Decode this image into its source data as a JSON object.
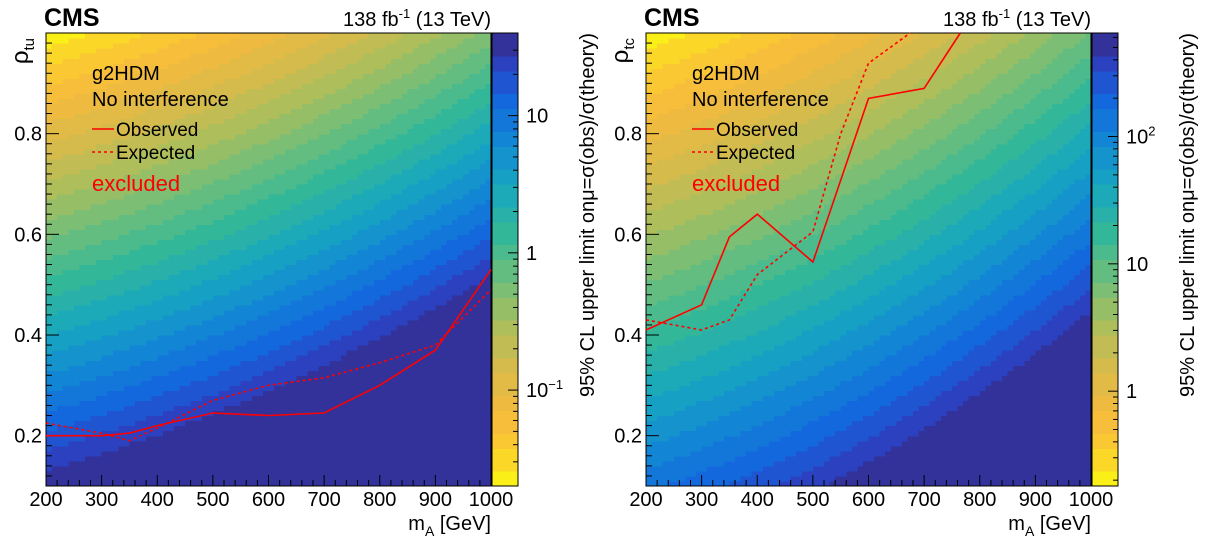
{
  "chart_data": [
    {
      "type": "heatmap",
      "experiment_label": "CMS",
      "lumi_label": "138 fb",
      "lumi_exp": "-1",
      "energy_label": " (13 TeV)",
      "xlabel_main": "m",
      "xlabel_sub": "A",
      "xlabel_unit": " [GeV]",
      "ylabel_main": "ρ",
      "ylabel_sub": "tu",
      "zlabel": "95% CL upper limit onμ=σ(obs)/σ(theory)",
      "xlim": [
        200,
        1000
      ],
      "ylim": [
        0.1,
        1.0
      ],
      "x_ticks": [
        "200",
        "300",
        "400",
        "500",
        "600",
        "700",
        "800",
        "900",
        "1000"
      ],
      "y_ticks": [
        "0.2",
        "0.4",
        "0.6",
        "0.8"
      ],
      "z_scale": "log",
      "zlim": [
        0.02,
        40
      ],
      "z_ticks": [
        {
          "value": 0.1,
          "base": "10",
          "exp": "−1"
        },
        {
          "value": 1,
          "base": "1",
          "exp": ""
        },
        {
          "value": 10,
          "base": "10",
          "exp": ""
        }
      ],
      "legend": {
        "model": "g2HDM",
        "scenario": "No interference",
        "observed": "Observed",
        "expected": "Expected",
        "excluded": "excluded"
      },
      "z_model": {
        "x_ref": 200,
        "y_ref": 1.0,
        "z_ref": 0.022,
        "decades_per_100GeV": 0.11,
        "decades_per_unit_rho": 3.6,
        "decades_per_100GeV_sq": 0.008
      },
      "observed": [
        {
          "x": 200,
          "y": 0.2
        },
        {
          "x": 300,
          "y": 0.2
        },
        {
          "x": 350,
          "y": 0.205
        },
        {
          "x": 400,
          "y": 0.22
        },
        {
          "x": 500,
          "y": 0.245
        },
        {
          "x": 600,
          "y": 0.24
        },
        {
          "x": 700,
          "y": 0.245
        },
        {
          "x": 800,
          "y": 0.3
        },
        {
          "x": 900,
          "y": 0.37
        },
        {
          "x": 1000,
          "y": 0.53
        }
      ],
      "expected": [
        {
          "x": 200,
          "y": 0.225
        },
        {
          "x": 300,
          "y": 0.205
        },
        {
          "x": 350,
          "y": 0.19
        },
        {
          "x": 400,
          "y": 0.215
        },
        {
          "x": 500,
          "y": 0.27
        },
        {
          "x": 600,
          "y": 0.3
        },
        {
          "x": 700,
          "y": 0.315
        },
        {
          "x": 800,
          "y": 0.345
        },
        {
          "x": 900,
          "y": 0.38
        },
        {
          "x": 1000,
          "y": 0.49
        }
      ]
    },
    {
      "type": "heatmap",
      "experiment_label": "CMS",
      "lumi_label": "138 fb",
      "lumi_exp": "-1",
      "energy_label": " (13 TeV)",
      "xlabel_main": "m",
      "xlabel_sub": "A",
      "xlabel_unit": " [GeV]",
      "ylabel_main": "ρ",
      "ylabel_sub": "tc",
      "zlabel": "95% CL upper limit onμ=σ(obs)/σ(theory)",
      "xlim": [
        200,
        1000
      ],
      "ylim": [
        0.1,
        1.0
      ],
      "x_ticks": [
        "200",
        "300",
        "400",
        "500",
        "600",
        "700",
        "800",
        "900",
        "1000"
      ],
      "y_ticks": [
        "0.2",
        "0.4",
        "0.6",
        "0.8"
      ],
      "z_scale": "log",
      "zlim": [
        0.18,
        650
      ],
      "z_ticks": [
        {
          "value": 1,
          "base": "1",
          "exp": ""
        },
        {
          "value": 10,
          "base": "10",
          "exp": ""
        },
        {
          "value": 100,
          "base": "10",
          "exp": "2"
        }
      ],
      "legend": {
        "model": "g2HDM",
        "scenario": "No interference",
        "observed": "Observed",
        "expected": "Expected",
        "excluded": "excluded"
      },
      "z_model": {
        "x_ref": 200,
        "y_ref": 1.0,
        "z_ref": 0.2,
        "decades_per_100GeV": 0.12,
        "decades_per_unit_rho": 3.2,
        "decades_per_100GeV_sq": 0.01
      },
      "observed": [
        {
          "x": 200,
          "y": 0.41
        },
        {
          "x": 300,
          "y": 0.46
        },
        {
          "x": 350,
          "y": 0.595
        },
        {
          "x": 400,
          "y": 0.64
        },
        {
          "x": 500,
          "y": 0.545
        },
        {
          "x": 600,
          "y": 0.87
        },
        {
          "x": 700,
          "y": 0.89
        },
        {
          "x": 765,
          "y": 1.0
        }
      ],
      "expected": [
        {
          "x": 200,
          "y": 0.43
        },
        {
          "x": 300,
          "y": 0.41
        },
        {
          "x": 350,
          "y": 0.43
        },
        {
          "x": 400,
          "y": 0.52
        },
        {
          "x": 500,
          "y": 0.605
        },
        {
          "x": 550,
          "y": 0.8
        },
        {
          "x": 600,
          "y": 0.94
        },
        {
          "x": 675,
          "y": 1.0
        }
      ]
    }
  ]
}
